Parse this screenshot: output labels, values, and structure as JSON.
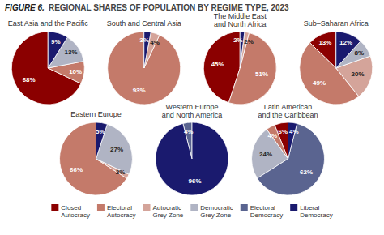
{
  "chart_data": {
    "type": "pie",
    "title": "FIGURE 6.",
    "subtitle": "REGIONAL SHARES OF POPULATION BY REGIME TYPE, 2023",
    "categories": [
      "Closed\nAutocracy",
      "Electoral\nAutocracy",
      "Autocratic\nGrey Zone",
      "Democratic\nGrey Zone",
      "Electoral\nDemocracy",
      "Liberal\nDemocracy"
    ],
    "colors": [
      "#8B0000",
      "#C47A6A",
      "#D4A49A",
      "#B0B4C4",
      "#5A6490",
      "#1A1A6E"
    ],
    "series": [
      {
        "name": "East Asia and the Pacific",
        "values": [
          68,
          10,
          0,
          13,
          0,
          9
        ],
        "value_labels": [
          "68%",
          "10%",
          null,
          "13%",
          null,
          "9%"
        ]
      },
      {
        "name": "South and Central Asia",
        "values": [
          0,
          93,
          4,
          0,
          0,
          3
        ],
        "value_labels": [
          null,
          "93%",
          "4%",
          null,
          null,
          "3%"
        ]
      },
      {
        "name": "The Middle East and North Africa",
        "values": [
          45,
          51,
          2,
          0,
          0,
          2
        ],
        "value_labels": [
          "45%",
          "51%",
          "2%",
          null,
          null,
          "2%"
        ]
      },
      {
        "name": "Sub–Saharan Africa",
        "values": [
          13,
          49,
          20,
          8,
          0,
          12
        ],
        "value_labels": [
          "13%",
          "49%",
          "20%",
          "8%",
          null,
          "12%"
        ]
      },
      {
        "name": "Eastern Europe",
        "values": [
          0,
          66,
          2,
          27,
          0,
          5
        ],
        "value_labels": [
          null,
          "66%",
          "2%",
          "27%",
          null,
          "5%"
        ]
      },
      {
        "name": "Western Europe and North America",
        "values": [
          0,
          0,
          0,
          0,
          4,
          96
        ],
        "value_labels": [
          null,
          null,
          null,
          null,
          "4%",
          "96%"
        ]
      },
      {
        "name": "Latin American and the Caribbean",
        "values": [
          6,
          4,
          0,
          24,
          62,
          4
        ],
        "value_labels": [
          "6%",
          "4%",
          null,
          "24%",
          "62%",
          "4%"
        ]
      }
    ],
    "data_labels": true,
    "legend": "bottom"
  }
}
